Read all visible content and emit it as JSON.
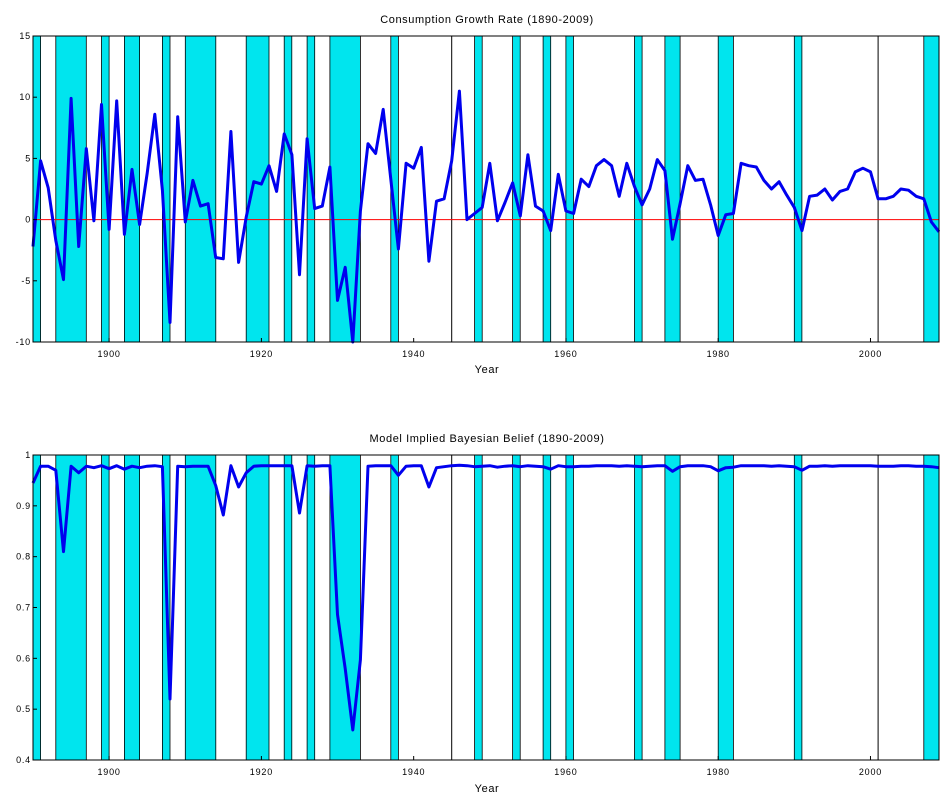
{
  "colors": {
    "series": "#0000ee",
    "recession": "#00e5ee",
    "zero_line": "#ff0000",
    "axes": "#000000"
  },
  "recessions": [
    [
      1890,
      1891
    ],
    [
      1893,
      1897
    ],
    [
      1899,
      1900
    ],
    [
      1902,
      1904
    ],
    [
      1907,
      1908
    ],
    [
      1910,
      1914
    ],
    [
      1918,
      1921
    ],
    [
      1923,
      1924
    ],
    [
      1926,
      1927
    ],
    [
      1929,
      1933
    ],
    [
      1937,
      1938
    ],
    [
      1945,
      1945
    ],
    [
      1948,
      1949
    ],
    [
      1953,
      1954
    ],
    [
      1957,
      1958
    ],
    [
      1960,
      1961
    ],
    [
      1969,
      1970
    ],
    [
      1973,
      1975
    ],
    [
      1980,
      1982
    ],
    [
      1990,
      1991
    ],
    [
      2001,
      2001
    ],
    [
      2007,
      2009
    ]
  ],
  "chart_data": [
    {
      "type": "line",
      "title": "Consumption Growth Rate (1890-2009)",
      "xlabel": "Year",
      "ylabel": "",
      "xlim": [
        1890,
        2009
      ],
      "ylim": [
        -10,
        15
      ],
      "grid": false,
      "xticks": [
        "1900",
        "1920",
        "1940",
        "1960",
        "1980",
        "2000"
      ],
      "yticks": [
        "15",
        "10",
        "5",
        "0",
        "-5",
        "-10"
      ],
      "reference_line": 0,
      "series": [
        {
          "x": [
            1890,
            1891,
            1892,
            1893,
            1894,
            1895,
            1896,
            1897,
            1898,
            1899,
            1900,
            1901,
            1902,
            1903,
            1904,
            1905,
            1906,
            1907,
            1908,
            1909,
            1910,
            1911,
            1912,
            1913,
            1914,
            1915,
            1916,
            1917,
            1918,
            1919,
            1920,
            1921,
            1922,
            1923,
            1924,
            1925,
            1926,
            1927,
            1928,
            1929,
            1930,
            1931,
            1932,
            1933,
            1934,
            1935,
            1936,
            1937,
            1938,
            1939,
            1940,
            1941,
            1942,
            1943,
            1944,
            1945,
            1946,
            1947,
            1948,
            1949,
            1950,
            1951,
            1952,
            1953,
            1954,
            1955,
            1956,
            1957,
            1958,
            1959,
            1960,
            1961,
            1962,
            1963,
            1964,
            1965,
            1966,
            1967,
            1968,
            1969,
            1970,
            1971,
            1972,
            1973,
            1974,
            1975,
            1976,
            1977,
            1978,
            1979,
            1980,
            1981,
            1982,
            1983,
            1984,
            1985,
            1986,
            1987,
            1988,
            1989,
            1990,
            1991,
            1992,
            1993,
            1994,
            1995,
            1996,
            1997,
            1998,
            1999,
            2000,
            2001,
            2002,
            2003,
            2004,
            2005,
            2006,
            2007,
            2008,
            2009
          ],
          "values": [
            -2.2,
            4.8,
            2.6,
            -1.7,
            -4.9,
            9.9,
            -2.2,
            5.8,
            -0.1,
            9.4,
            -0.8,
            9.7,
            -1.2,
            4.1,
            -0.4,
            3.8,
            8.6,
            2.4,
            -8.4,
            8.4,
            -0.2,
            3.2,
            1.1,
            1.3,
            -3.1,
            -3.2,
            7.2,
            -3.5,
            0.2,
            3.1,
            2.9,
            4.4,
            2.3,
            7.0,
            5.3,
            -4.5,
            6.6,
            0.9,
            1.1,
            4.3,
            -6.6,
            -3.9,
            -10.0,
            0.7,
            6.2,
            5.4,
            9.0,
            3.3,
            -2.4,
            4.6,
            4.2,
            5.9,
            -3.4,
            1.5,
            1.7,
            4.8,
            10.5,
            0.0,
            0.5,
            1.0,
            4.6,
            -0.1,
            1.4,
            3.0,
            0.3,
            5.3,
            1.1,
            0.7,
            -0.9,
            3.7,
            0.7,
            0.5,
            3.3,
            2.7,
            4.4,
            4.9,
            4.4,
            1.9,
            4.6,
            2.7,
            1.2,
            2.5,
            4.9,
            4.0,
            -1.6,
            1.3,
            4.4,
            3.2,
            3.3,
            1.2,
            -1.3,
            0.4,
            0.5,
            4.6,
            4.4,
            4.3,
            3.2,
            2.5,
            3.1,
            2.0,
            1.0,
            -0.9,
            1.9,
            2.0,
            2.5,
            1.6,
            2.3,
            2.5,
            3.9,
            4.2,
            3.9,
            1.7,
            1.7,
            1.9,
            2.5,
            2.4,
            1.9,
            1.7,
            -0.2,
            -1.0
          ]
        }
      ]
    },
    {
      "type": "line",
      "title": "Model Implied Bayesian Belief (1890-2009)",
      "xlabel": "Year",
      "ylabel": "",
      "xlim": [
        1890,
        2009
      ],
      "ylim": [
        0.4,
        1
      ],
      "grid": false,
      "xticks": [
        "1900",
        "1920",
        "1940",
        "1960",
        "1980",
        "2000"
      ],
      "yticks": [
        "1",
        "0.9",
        "0.8",
        "0.7",
        "0.6",
        "0.5",
        "0.4"
      ],
      "series": [
        {
          "x": [
            1890,
            1891,
            1892,
            1893,
            1894,
            1895,
            1896,
            1897,
            1898,
            1899,
            1900,
            1901,
            1902,
            1903,
            1904,
            1905,
            1906,
            1907,
            1908,
            1909,
            1910,
            1911,
            1912,
            1913,
            1914,
            1915,
            1916,
            1917,
            1918,
            1919,
            1920,
            1921,
            1922,
            1923,
            1924,
            1925,
            1926,
            1927,
            1928,
            1929,
            1930,
            1931,
            1932,
            1933,
            1934,
            1935,
            1936,
            1937,
            1938,
            1939,
            1940,
            1941,
            1942,
            1943,
            1944,
            1945,
            1946,
            1947,
            1948,
            1949,
            1950,
            1951,
            1952,
            1953,
            1954,
            1955,
            1956,
            1957,
            1958,
            1959,
            1960,
            1961,
            1962,
            1963,
            1964,
            1965,
            1966,
            1967,
            1968,
            1969,
            1970,
            1971,
            1972,
            1973,
            1974,
            1975,
            1976,
            1977,
            1978,
            1979,
            1980,
            1981,
            1982,
            1983,
            1984,
            1985,
            1986,
            1987,
            1988,
            1989,
            1990,
            1991,
            1992,
            1993,
            1994,
            1995,
            1996,
            1997,
            1998,
            1999,
            2000,
            2001,
            2002,
            2003,
            2004,
            2005,
            2006,
            2007,
            2008,
            2009
          ],
          "values": [
            0.945,
            0.978,
            0.978,
            0.97,
            0.81,
            0.978,
            0.965,
            0.978,
            0.975,
            0.979,
            0.973,
            0.979,
            0.972,
            0.978,
            0.975,
            0.978,
            0.979,
            0.977,
            0.52,
            0.978,
            0.977,
            0.978,
            0.978,
            0.978,
            0.94,
            0.882,
            0.979,
            0.937,
            0.965,
            0.978,
            0.979,
            0.979,
            0.979,
            0.979,
            0.979,
            0.886,
            0.979,
            0.978,
            0.979,
            0.979,
            0.686,
            0.58,
            0.459,
            0.597,
            0.978,
            0.979,
            0.979,
            0.979,
            0.96,
            0.978,
            0.979,
            0.979,
            0.937,
            0.975,
            0.977,
            0.979,
            0.98,
            0.979,
            0.977,
            0.978,
            0.979,
            0.976,
            0.978,
            0.979,
            0.977,
            0.979,
            0.978,
            0.977,
            0.972,
            0.979,
            0.977,
            0.977,
            0.978,
            0.978,
            0.979,
            0.979,
            0.979,
            0.978,
            0.979,
            0.978,
            0.977,
            0.978,
            0.979,
            0.979,
            0.968,
            0.977,
            0.979,
            0.979,
            0.979,
            0.977,
            0.969,
            0.975,
            0.976,
            0.979,
            0.979,
            0.979,
            0.979,
            0.978,
            0.979,
            0.978,
            0.977,
            0.97,
            0.978,
            0.978,
            0.979,
            0.978,
            0.979,
            0.979,
            0.979,
            0.979,
            0.979,
            0.978,
            0.978,
            0.978,
            0.979,
            0.979,
            0.978,
            0.978,
            0.977,
            0.975
          ]
        }
      ]
    }
  ]
}
